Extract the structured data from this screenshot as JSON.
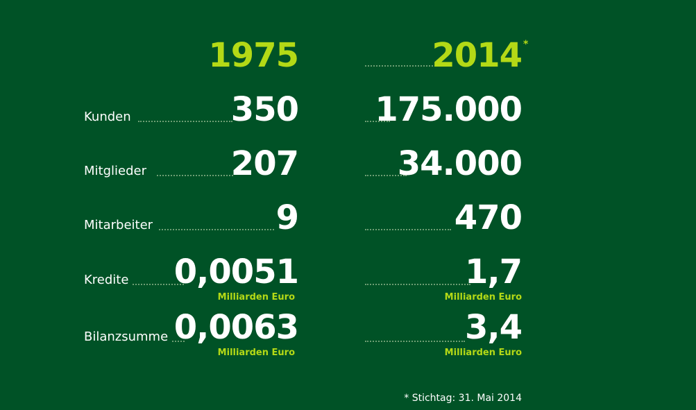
{
  "header": {
    "year_1": "1975",
    "year_2": "2014",
    "year_2_marker": "*"
  },
  "rows": [
    {
      "label": "Kunden",
      "value_1975": "350",
      "value_2014": "175.000"
    },
    {
      "label": "Mitglieder",
      "value_1975": "207",
      "value_2014": "34.000"
    },
    {
      "label": "Mitarbeiter",
      "value_1975": "9",
      "value_2014": "470"
    },
    {
      "label": "Kredite",
      "value_1975": "0,0051",
      "value_2014": "1,7",
      "unit_1975": "Milliarden Euro",
      "unit_2014": "Milliarden Euro"
    },
    {
      "label": "Bilanzsumme",
      "value_1975": "0,0063",
      "value_2014": "3,4",
      "unit_1975": "Milliarden Euro",
      "unit_2014": "Milliarden Euro"
    }
  ],
  "footnote": "* Stichtag: 31. Mai 2014",
  "colors": {
    "background": "#005226",
    "accent": "#b4d916",
    "text": "#ffffff"
  }
}
